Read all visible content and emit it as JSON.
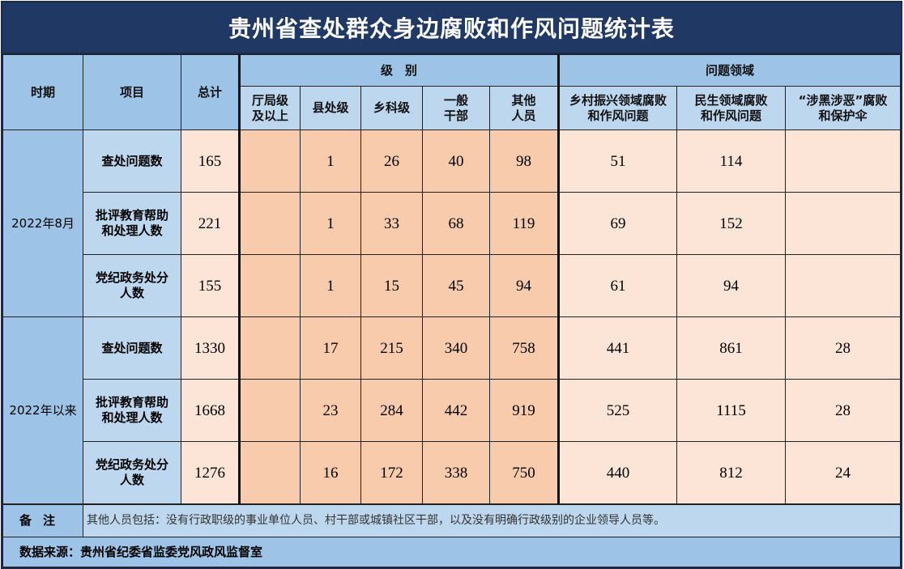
{
  "title": "贵州省查处群众身边腐败和作风问题统计表",
  "headers": {
    "period": "时期",
    "item": "项目",
    "total": "总计",
    "level_group": "级　别",
    "domain_group": "问题领域",
    "levels": [
      "厅局级\n及以上",
      "县处级",
      "乡科级",
      "一般\n干部",
      "其他\n人员"
    ],
    "domains": [
      "乡村振兴领域腐败\n和作风问题",
      "民生领域腐败\n和作风问题",
      "“涉黑涉恶”腐败\n和保护伞"
    ]
  },
  "groups": [
    {
      "period": "2022年8月",
      "rows": [
        {
          "item": "查处问题数",
          "total": "165",
          "levels": [
            "",
            "1",
            "26",
            "40",
            "98"
          ],
          "domains": [
            "51",
            "114",
            ""
          ]
        },
        {
          "item": "批评教育帮助\n和处理人数",
          "total": "221",
          "levels": [
            "",
            "1",
            "33",
            "68",
            "119"
          ],
          "domains": [
            "69",
            "152",
            ""
          ]
        },
        {
          "item": "党纪政务处分\n人数",
          "total": "155",
          "levels": [
            "",
            "1",
            "15",
            "45",
            "94"
          ],
          "domains": [
            "61",
            "94",
            ""
          ]
        }
      ]
    },
    {
      "period": "2022年以来",
      "rows": [
        {
          "item": "查处问题数",
          "total": "1330",
          "levels": [
            "",
            "17",
            "215",
            "340",
            "758"
          ],
          "domains": [
            "441",
            "861",
            "28"
          ]
        },
        {
          "item": "批评教育帮助\n和处理人数",
          "total": "1668",
          "levels": [
            "",
            "23",
            "284",
            "442",
            "919"
          ],
          "domains": [
            "525",
            "1115",
            "28"
          ]
        },
        {
          "item": "党纪政务处分\n人数",
          "total": "1276",
          "levels": [
            "",
            "16",
            "172",
            "338",
            "750"
          ],
          "domains": [
            "440",
            "812",
            "24"
          ]
        }
      ]
    }
  ],
  "note": {
    "label": "备注",
    "text": "其他人员包括：没有行政职级的事业单位人员、村干部或城镇社区干部，以及没有明确行政级别的企业领导人员等。"
  },
  "source": "数据来源：贵州省纪委省监委党风政风监督室",
  "colors": {
    "title_bg": "#1f3864",
    "header_blue": "#9dc3e6",
    "light_blue": "#bdd7ee",
    "peach": "#f8cbad",
    "light_peach": "#fce4d6"
  }
}
